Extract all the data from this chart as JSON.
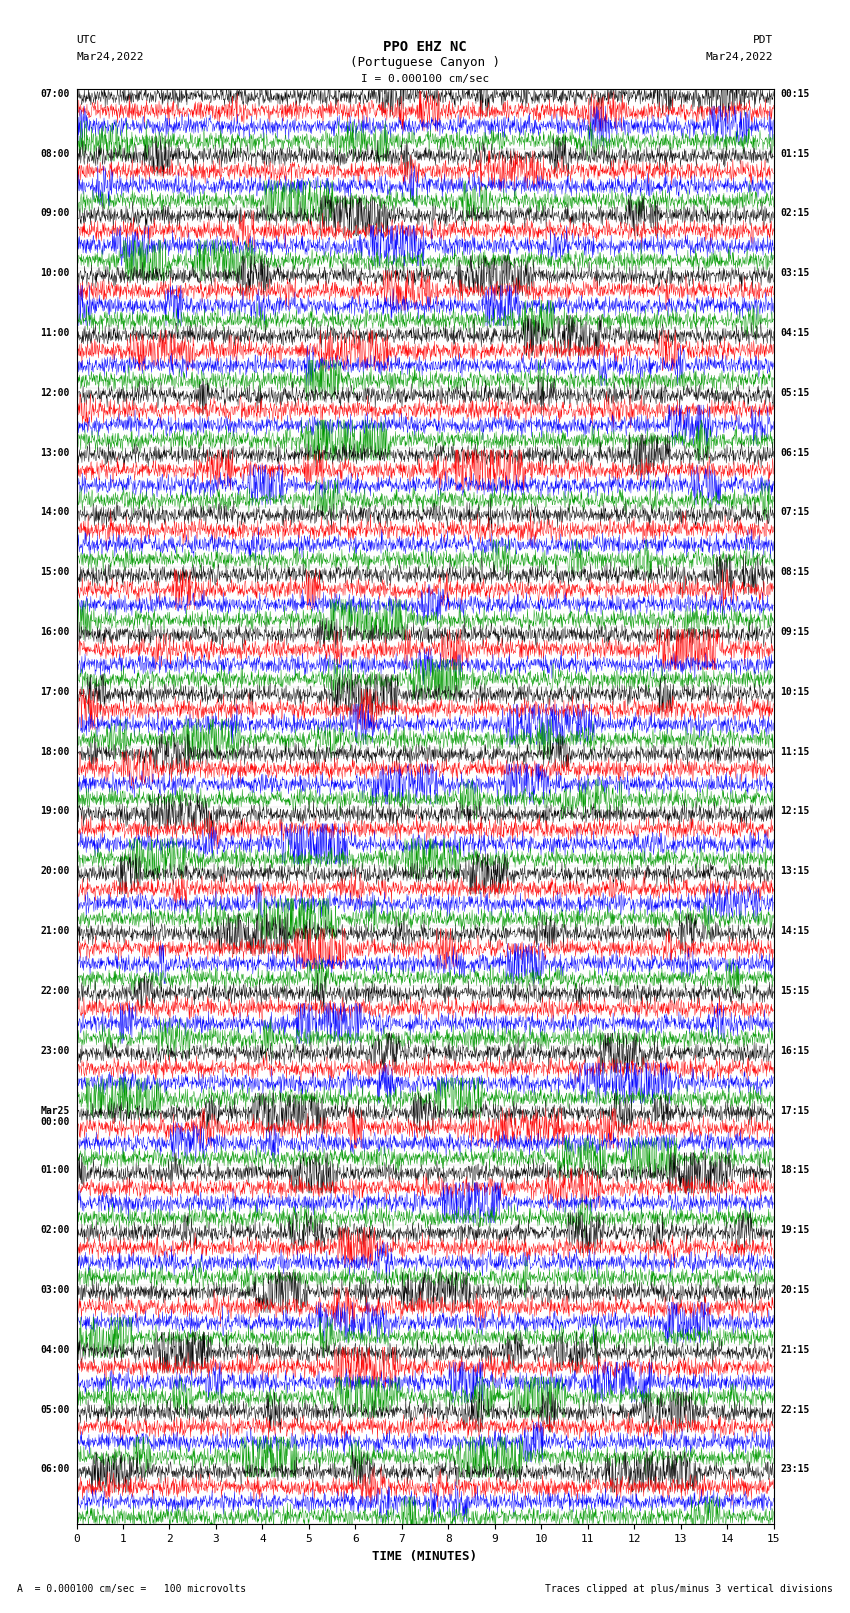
{
  "title_line1": "PPO EHZ NC",
  "title_line2": "(Portuguese Canyon )",
  "title_scale": "I = 0.000100 cm/sec",
  "left_header_line1": "UTC",
  "left_header_line2": "Mar24,2022",
  "right_header_line1": "PDT",
  "right_header_line2": "Mar24,2022",
  "xlabel": "TIME (MINUTES)",
  "footer_left": "A  = 0.000100 cm/sec =   100 microvolts",
  "footer_right": "Traces clipped at plus/minus 3 vertical divisions",
  "xticks": [
    0,
    1,
    2,
    3,
    4,
    5,
    6,
    7,
    8,
    9,
    10,
    11,
    12,
    13,
    14,
    15
  ],
  "left_times": [
    "07:00",
    "08:00",
    "09:00",
    "10:00",
    "11:00",
    "12:00",
    "13:00",
    "14:00",
    "15:00",
    "16:00",
    "17:00",
    "18:00",
    "19:00",
    "20:00",
    "21:00",
    "22:00",
    "23:00",
    "Mar25\n00:00",
    "01:00",
    "02:00",
    "03:00",
    "04:00",
    "05:00",
    "06:00"
  ],
  "right_times": [
    "00:15",
    "01:15",
    "02:15",
    "03:15",
    "04:15",
    "05:15",
    "06:15",
    "07:15",
    "08:15",
    "09:15",
    "10:15",
    "11:15",
    "12:15",
    "13:15",
    "14:15",
    "15:15",
    "16:15",
    "17:15",
    "18:15",
    "19:15",
    "20:15",
    "21:15",
    "22:15",
    "23:15"
  ],
  "num_rows": 24,
  "traces_per_row": 4,
  "trace_colors": [
    "#000000",
    "#ff0000",
    "#0000ff",
    "#009900"
  ],
  "background_color": "#ffffff",
  "fig_width": 8.5,
  "fig_height": 16.13,
  "dpi": 100,
  "noise_amplitude": 0.3,
  "noise_seed": 42
}
